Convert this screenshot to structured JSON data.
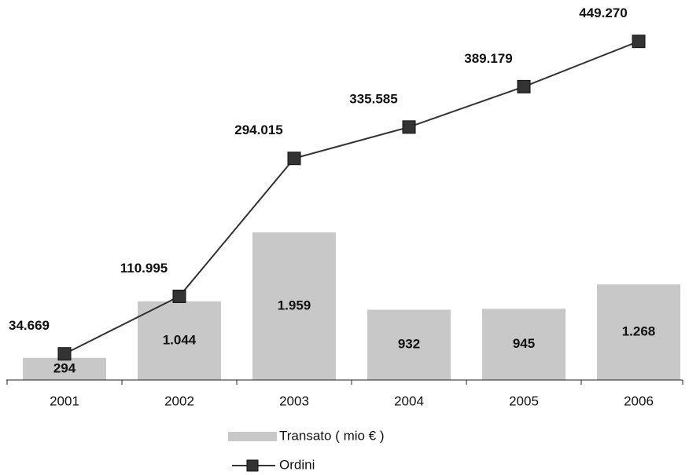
{
  "chart_data": {
    "type": "bar",
    "categories": [
      "2001",
      "2002",
      "2003",
      "2004",
      "2005",
      "2006"
    ],
    "series": [
      {
        "name": "Transato ( mio € )",
        "type": "bar",
        "color": "#c8c8c8",
        "values": [
          294,
          1044,
          1959,
          932,
          945,
          1268
        ],
        "value_labels": [
          "294",
          "1.044",
          "1.959",
          "932",
          "945",
          "1.268"
        ]
      },
      {
        "name": "Ordini",
        "type": "line",
        "axis": "y2",
        "color": "#333333",
        "values": [
          34669,
          110995,
          294015,
          335585,
          389179,
          449270
        ],
        "value_labels": [
          "34.669",
          "110.995",
          "294.015",
          "335.585",
          "389.179",
          "449.270"
        ]
      }
    ],
    "ylim": [
      0,
      5000
    ],
    "y2lim": [
      0,
      500000
    ],
    "grid": false
  }
}
